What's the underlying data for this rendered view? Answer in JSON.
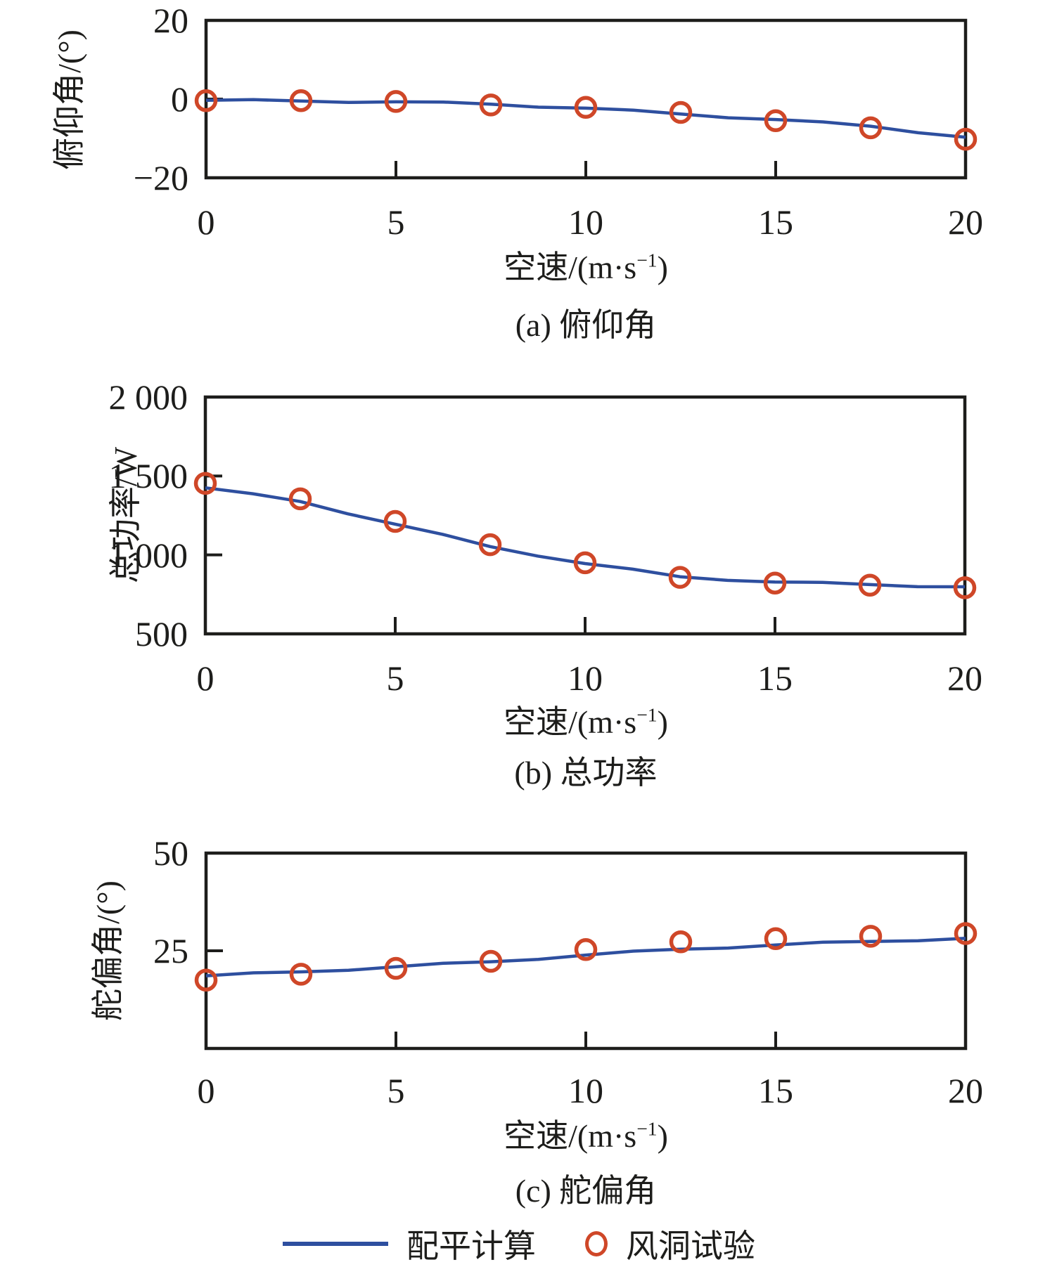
{
  "figure": {
    "xlabel": {
      "pre": "空速/(m·s",
      "sup": "−1",
      "post": ")"
    },
    "legend": [
      {
        "label": "配平计算",
        "marker": "line",
        "color": "#2e4f9f"
      },
      {
        "label": "风洞试验",
        "marker": "circle",
        "color": "#cf4728"
      }
    ],
    "frame_color": "#1d1d1b",
    "background": "#ffffff"
  },
  "chart_data": [
    {
      "id": "a",
      "type": "line",
      "title": "(a) 俯仰角",
      "ylabel": "俯仰角/(°)",
      "xlabel": "空速/(m·s⁻¹)",
      "x": [
        0,
        2.5,
        5,
        7.5,
        10,
        12.5,
        15,
        17.5,
        20
      ],
      "xlim": [
        0,
        20
      ],
      "ylim": [
        -20,
        20
      ],
      "grid": false,
      "xticks": [
        {
          "v": 0,
          "label": "0"
        },
        {
          "v": 5,
          "label": "5"
        },
        {
          "v": 10,
          "label": "10"
        },
        {
          "v": 15,
          "label": "15"
        },
        {
          "v": 20,
          "label": "20"
        }
      ],
      "yticks": [
        {
          "v": 20,
          "label": "20"
        },
        {
          "v": 0,
          "label": "0"
        },
        {
          "v": -20,
          "label": "−20"
        }
      ],
      "series": [
        {
          "name": "配平计算",
          "type": "line",
          "color": "#2e4f9f",
          "values": [
            -0.3,
            -0.5,
            -0.7,
            -1.3,
            -2.3,
            -3.8,
            -5.2,
            -6.9,
            -9.7
          ]
        },
        {
          "name": "风洞试验",
          "type": "scatter",
          "color": "#cf4728",
          "values": [
            -0.4,
            -0.4,
            -0.6,
            -1.5,
            -2.1,
            -3.4,
            -5.5,
            -7.3,
            -10.2
          ]
        }
      ]
    },
    {
      "id": "b",
      "type": "line",
      "title": "(b) 总功率",
      "ylabel": "总功率/W",
      "xlabel": "空速/(m·s⁻¹)",
      "x": [
        0,
        2.5,
        5,
        7.5,
        10,
        12.5,
        15,
        17.5,
        20
      ],
      "xlim": [
        0,
        20
      ],
      "ylim": [
        500,
        2000
      ],
      "grid": false,
      "xticks": [
        {
          "v": 0,
          "label": "0"
        },
        {
          "v": 5,
          "label": "5"
        },
        {
          "v": 10,
          "label": "10"
        },
        {
          "v": 15,
          "label": "15"
        },
        {
          "v": 20,
          "label": "20"
        }
      ],
      "yticks": [
        {
          "v": 2000,
          "label": "2 000"
        },
        {
          "v": 1500,
          "label": "1 500"
        },
        {
          "v": 1000,
          "label": "1 000"
        },
        {
          "v": 500,
          "label": "500"
        }
      ],
      "series": [
        {
          "name": "配平计算",
          "type": "line",
          "color": "#2e4f9f",
          "values": [
            1425,
            1338,
            1195,
            1053,
            945,
            862,
            828,
            812,
            798
          ]
        },
        {
          "name": "风洞试验",
          "type": "scatter",
          "color": "#cf4728",
          "values": [
            1453,
            1355,
            1212,
            1065,
            950,
            858,
            822,
            808,
            792
          ]
        }
      ]
    },
    {
      "id": "c",
      "type": "line",
      "title": "(c) 舵偏角",
      "ylabel": "舵偏角/(°)",
      "xlabel": "空速/(m·s⁻¹)",
      "x": [
        0,
        2.5,
        5,
        7.5,
        10,
        12.5,
        15,
        17.5,
        20
      ],
      "xlim": [
        0,
        20
      ],
      "ylim": [
        0,
        50
      ],
      "grid": false,
      "xticks": [
        {
          "v": 0,
          "label": "0"
        },
        {
          "v": 5,
          "label": "5"
        },
        {
          "v": 10,
          "label": "10"
        },
        {
          "v": 15,
          "label": "15"
        },
        {
          "v": 20,
          "label": "20"
        }
      ],
      "yticks": [
        {
          "v": 50,
          "label": "50"
        },
        {
          "v": 25,
          "label": "25"
        }
      ],
      "series": [
        {
          "name": "配平计算",
          "type": "line",
          "color": "#2e4f9f",
          "values": [
            18.6,
            19.6,
            20.9,
            22.2,
            23.9,
            25.4,
            26.5,
            27.4,
            28.2
          ]
        },
        {
          "name": "风洞试验",
          "type": "scatter",
          "color": "#cf4728",
          "values": [
            17.5,
            19.0,
            20.5,
            22.3,
            25.3,
            27.3,
            28.1,
            28.7,
            29.4
          ]
        }
      ]
    }
  ]
}
